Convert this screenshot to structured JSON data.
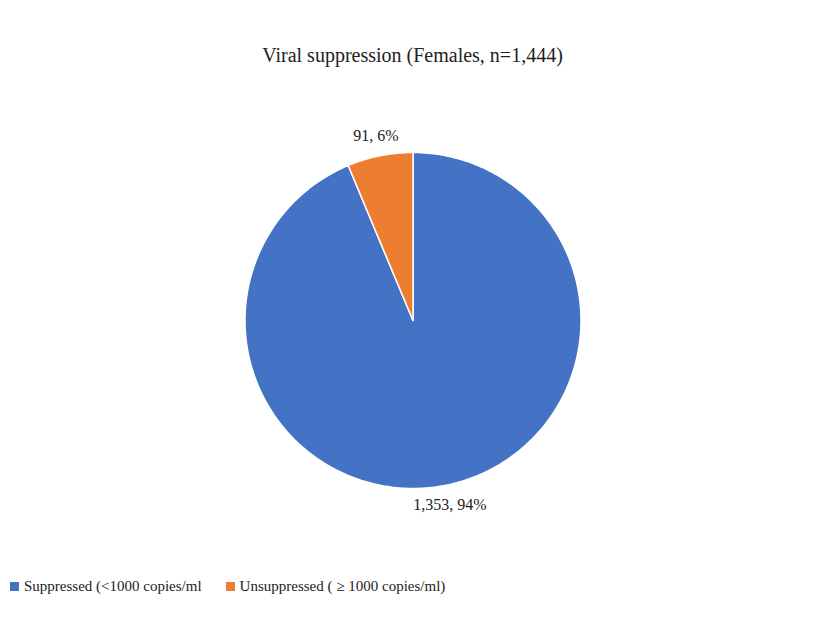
{
  "chart_data": {
    "type": "pie",
    "title": "Viral suppression (Females, n=1,444)",
    "categories": [
      "Suppressed (<1000 copies/ml",
      "Unsuppressed ( ≥ 1000 copies/ml)"
    ],
    "values": [
      1353,
      91
    ],
    "value_labels": [
      "1,353, 94%",
      "91, 6%"
    ],
    "colors": [
      "#4472c4",
      "#ed7d31"
    ],
    "data_labels": true,
    "legend": "bottom"
  }
}
